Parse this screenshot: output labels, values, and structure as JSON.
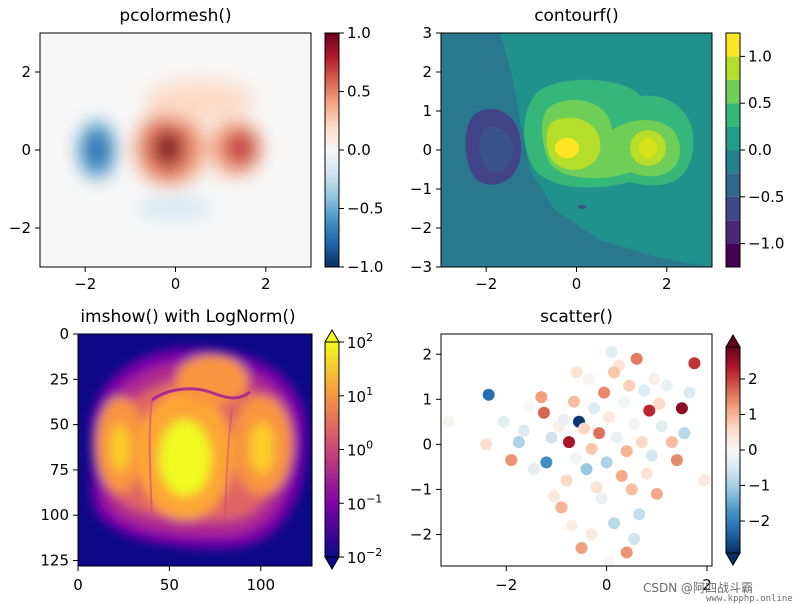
{
  "chart_data": [
    {
      "type": "heatmap",
      "title": "pcolormesh()",
      "xlim": [
        -3,
        3
      ],
      "ylim": [
        -3,
        3
      ],
      "xticks": [
        "−2",
        "0",
        "2"
      ],
      "yticks": [
        "−2",
        "0",
        "2"
      ],
      "colormap": "RdBu_r",
      "colorbar": {
        "range": [
          -1,
          1
        ],
        "ticks": [
          "−1.0",
          "−0.5",
          "0.0",
          "0.5",
          "1.0"
        ]
      },
      "grid": false
    },
    {
      "type": "heatmap",
      "title": "contourf()",
      "xlim": [
        -3,
        3
      ],
      "ylim": [
        -3,
        3
      ],
      "xticks": [
        "−2",
        "0",
        "2"
      ],
      "yticks": [
        "−3",
        "−2",
        "−1",
        "0",
        "1",
        "2",
        "3"
      ],
      "colormap": "viridis",
      "levels": [
        -1.25,
        -1.0,
        -0.75,
        -0.5,
        -0.25,
        0.0,
        0.25,
        0.5,
        0.75,
        1.0,
        1.25
      ],
      "colorbar": {
        "range": [
          -1.25,
          1.25
        ],
        "ticks": [
          "−1.0",
          "−0.5",
          "0.0",
          "0.5",
          "1.0"
        ]
      },
      "grid": false
    },
    {
      "type": "heatmap",
      "title": "imshow() with LogNorm()",
      "xlim": [
        0,
        128
      ],
      "ylim": [
        128,
        0
      ],
      "xticks": [
        "0",
        "50",
        "100"
      ],
      "yticks": [
        "0",
        "25",
        "50",
        "75",
        "100",
        "125"
      ],
      "colormap": "plasma",
      "scale": "log",
      "colorbar": {
        "range": [
          0.01,
          100
        ],
        "ticks": [
          "10^-2",
          "10^-1",
          "10^0",
          "10^1",
          "10^2"
        ]
      },
      "grid": false
    },
    {
      "type": "scatter",
      "title": "scatter()",
      "xlim": [
        -3.3,
        2.1
      ],
      "ylim": [
        -2.7,
        2.45
      ],
      "xticks": [
        "−2",
        "0",
        "2"
      ],
      "yticks": [
        "−2",
        "−1",
        "0",
        "1",
        "2"
      ],
      "colormap": "RdBu_r",
      "colorbar": {
        "range": [
          -2.9,
          2.9
        ],
        "ticks": [
          "−2",
          "−1",
          "0",
          "1",
          "2"
        ]
      },
      "grid": false,
      "points": [
        {
          "x": -2.35,
          "y": 1.1,
          "c": -2.2
        },
        {
          "x": -3.15,
          "y": 0.5,
          "c": 0.1
        },
        {
          "x": -2.4,
          "y": 0.0,
          "c": 0.5
        },
        {
          "x": -2.05,
          "y": 0.5,
          "c": -0.3
        },
        {
          "x": -1.9,
          "y": -0.35,
          "c": 1.3
        },
        {
          "x": -1.75,
          "y": 0.05,
          "c": -0.9
        },
        {
          "x": -1.55,
          "y": 0.85,
          "c": 0.0
        },
        {
          "x": -1.45,
          "y": -0.55,
          "c": -0.3
        },
        {
          "x": -1.3,
          "y": 1.05,
          "c": 1.2
        },
        {
          "x": -1.25,
          "y": 0.7,
          "c": 1.7
        },
        {
          "x": -1.2,
          "y": -0.4,
          "c": -1.8
        },
        {
          "x": -1.1,
          "y": 0.15,
          "c": -0.6
        },
        {
          "x": -1.05,
          "y": -1.15,
          "c": 0.3
        },
        {
          "x": -0.95,
          "y": 0.4,
          "c": 0.2
        },
        {
          "x": -0.9,
          "y": -1.4,
          "c": 1.0
        },
        {
          "x": -0.85,
          "y": 0.55,
          "c": -0.2
        },
        {
          "x": -0.8,
          "y": -0.8,
          "c": 0.6
        },
        {
          "x": -0.75,
          "y": 0.05,
          "c": 2.4
        },
        {
          "x": -0.7,
          "y": -1.8,
          "c": 0.2
        },
        {
          "x": -0.65,
          "y": 0.95,
          "c": 0.9
        },
        {
          "x": -0.6,
          "y": -0.3,
          "c": -0.1
        },
        {
          "x": -0.55,
          "y": 0.5,
          "c": -2.8
        },
        {
          "x": -0.5,
          "y": -2.3,
          "c": 1.2
        },
        {
          "x": -0.45,
          "y": 0.35,
          "c": 0.6
        },
        {
          "x": -0.4,
          "y": -0.55,
          "c": -1.1
        },
        {
          "x": -0.35,
          "y": 1.45,
          "c": 0.1
        },
        {
          "x": -0.3,
          "y": -0.1,
          "c": 0.8
        },
        {
          "x": -0.25,
          "y": 0.8,
          "c": -0.4
        },
        {
          "x": -0.2,
          "y": -0.95,
          "c": 0.4
        },
        {
          "x": -0.15,
          "y": 0.25,
          "c": 1.6
        },
        {
          "x": -0.1,
          "y": -1.2,
          "c": -0.2
        },
        {
          "x": -0.05,
          "y": 1.15,
          "c": 1.4
        },
        {
          "x": 0.0,
          "y": -0.4,
          "c": -0.9
        },
        {
          "x": 0.05,
          "y": 0.6,
          "c": 0.3
        },
        {
          "x": 0.1,
          "y": 2.05,
          "c": -0.3
        },
        {
          "x": 0.15,
          "y": -1.75,
          "c": -0.8
        },
        {
          "x": 0.2,
          "y": 0.15,
          "c": -0.2
        },
        {
          "x": 0.25,
          "y": 1.75,
          "c": 0.4
        },
        {
          "x": 0.3,
          "y": -0.7,
          "c": 1.1
        },
        {
          "x": 0.35,
          "y": 0.95,
          "c": -0.1
        },
        {
          "x": 0.4,
          "y": -0.15,
          "c": 1.0
        },
        {
          "x": 0.45,
          "y": 1.3,
          "c": 0.7
        },
        {
          "x": 0.5,
          "y": -1.0,
          "c": 0.9
        },
        {
          "x": 0.55,
          "y": 0.45,
          "c": -0.1
        },
        {
          "x": 0.6,
          "y": 1.9,
          "c": 1.5
        },
        {
          "x": 0.65,
          "y": -1.55,
          "c": -0.7
        },
        {
          "x": 0.7,
          "y": 0.05,
          "c": 0.6
        },
        {
          "x": 0.75,
          "y": 1.2,
          "c": -0.4
        },
        {
          "x": 0.8,
          "y": -0.65,
          "c": 0.4
        },
        {
          "x": 0.85,
          "y": 0.75,
          "c": 2.2
        },
        {
          "x": 0.9,
          "y": -0.25,
          "c": -0.5
        },
        {
          "x": 0.95,
          "y": 1.45,
          "c": 0.2
        },
        {
          "x": 1.0,
          "y": -1.1,
          "c": 1.1
        },
        {
          "x": 1.1,
          "y": 0.4,
          "c": -0.3
        },
        {
          "x": 1.2,
          "y": 1.3,
          "c": -0.2
        },
        {
          "x": 1.3,
          "y": 0.05,
          "c": 0.9
        },
        {
          "x": 1.4,
          "y": -0.35,
          "c": 1.4
        },
        {
          "x": 1.5,
          "y": 0.8,
          "c": 2.6
        },
        {
          "x": 1.55,
          "y": 0.25,
          "c": -0.8
        },
        {
          "x": 1.65,
          "y": 1.15,
          "c": -0.4
        },
        {
          "x": 1.75,
          "y": 1.8,
          "c": 2.1
        },
        {
          "x": 1.95,
          "y": -0.8,
          "c": 0.3
        },
        {
          "x": -0.3,
          "y": -2.0,
          "c": 0.3
        },
        {
          "x": 0.05,
          "y": -2.6,
          "c": 0.0
        },
        {
          "x": 0.4,
          "y": -2.4,
          "c": 1.3
        },
        {
          "x": -0.6,
          "y": 1.6,
          "c": 0.4
        },
        {
          "x": 0.15,
          "y": 1.6,
          "c": 0.8
        },
        {
          "x": -1.65,
          "y": 0.3,
          "c": -0.4
        },
        {
          "x": 0.55,
          "y": -2.1,
          "c": -0.6
        },
        {
          "x": 1.05,
          "y": 0.9,
          "c": 0.6
        }
      ]
    }
  ],
  "watermark": {
    "text": "CSDN @阿四战斗霸",
    "url": "www.kpphp.online"
  }
}
